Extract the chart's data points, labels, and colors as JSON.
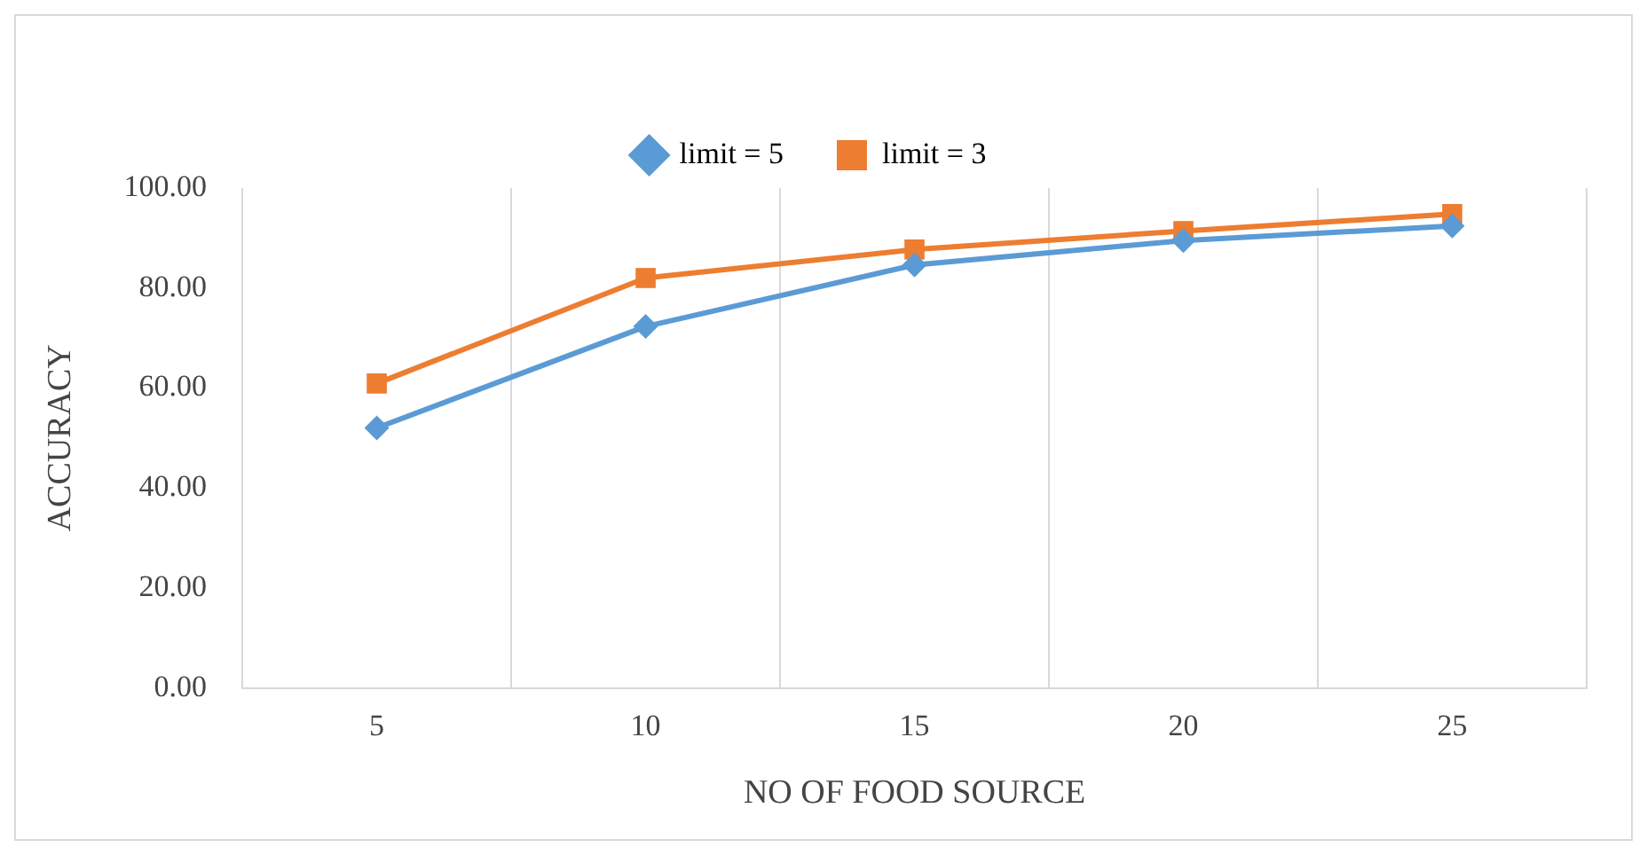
{
  "chart_data": {
    "type": "line",
    "xlabel": "NO OF FOOD SOURCE",
    "ylabel": "ACCURACY",
    "categories": [
      "5",
      "10",
      "15",
      "20",
      "25"
    ],
    "series": [
      {
        "name": "limit = 5",
        "color": "#5b9bd5",
        "marker": "diamond",
        "values": [
          52.0,
          72.3,
          84.6,
          89.5,
          92.4
        ]
      },
      {
        "name": "limit = 3",
        "color": "#ed7d31",
        "marker": "square",
        "values": [
          60.9,
          82.0,
          87.7,
          91.4,
          94.8
        ]
      }
    ],
    "ylim": [
      0,
      100
    ],
    "yticks": [
      {
        "value": 0,
        "label": "0.00"
      },
      {
        "value": 20,
        "label": "20.00"
      },
      {
        "value": 40,
        "label": "40.00"
      },
      {
        "value": 60,
        "label": "60.00"
      },
      {
        "value": 80,
        "label": "80.00"
      },
      {
        "value": 100,
        "label": "100.00"
      }
    ],
    "grid": "x",
    "legend": "top",
    "line_style": "solid"
  }
}
